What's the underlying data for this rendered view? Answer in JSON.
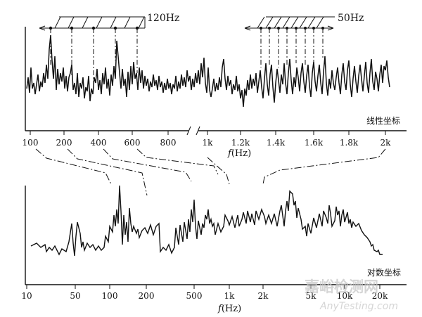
{
  "annotations": {
    "harmonic_120": "120Hz",
    "harmonic_50": "50Hz"
  },
  "top_panel": {
    "caption": "线性坐标",
    "axis_title_italic": "f",
    "axis_title_unit": "(Hz)",
    "ticks_low": [
      "100",
      "200",
      "400",
      "600",
      "800"
    ],
    "ticks_high": [
      "1k",
      "1.2k",
      "1.4k",
      "1.6k",
      "1.8k",
      "2k"
    ]
  },
  "bottom_panel": {
    "caption": "对数坐标",
    "axis_title_italic": "f",
    "axis_title_unit": "(Hz)",
    "ticks": [
      "10",
      "50",
      "100",
      "200",
      "500",
      "1k",
      "2k",
      "5k",
      "10k",
      "20k"
    ]
  },
  "watermark": {
    "brand_cn": "嘉峪检测网",
    "brand_url": "AnyTesting.com"
  },
  "colors": {
    "ink": "#111111",
    "watermark": "#c8c8c8"
  }
}
